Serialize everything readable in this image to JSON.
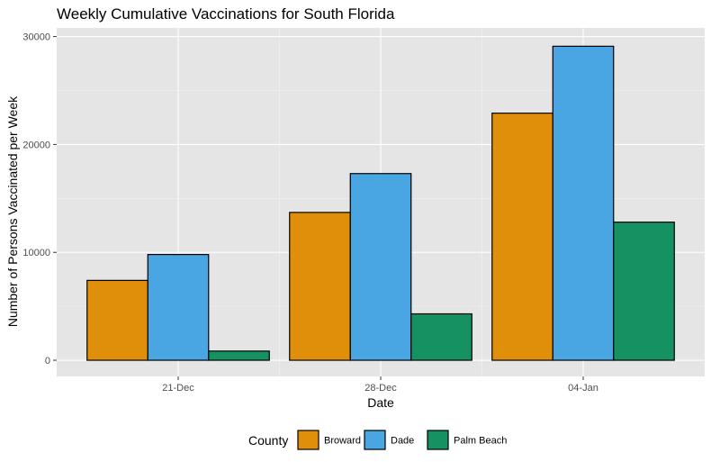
{
  "chart_data": {
    "type": "bar",
    "title": "Weekly Cumulative Vaccinations for South Florida",
    "xlabel": "Date",
    "ylabel": "Number of Persons Vaccinated per Week",
    "categories": [
      "21-Dec",
      "28-Dec",
      "04-Jan"
    ],
    "series": [
      {
        "name": "Broward",
        "color": "#E08F0B",
        "values": [
          7400,
          13700,
          22900
        ]
      },
      {
        "name": "Dade",
        "color": "#4AA6E3",
        "values": [
          9800,
          17300,
          29100
        ]
      },
      {
        "name": "Palm Beach",
        "color": "#169162",
        "values": [
          850,
          4300,
          12800
        ]
      }
    ],
    "ylim": [
      -1500,
      30800
    ],
    "yticks": [
      0,
      10000,
      20000,
      30000
    ],
    "ytick_labels": [
      "0",
      "10000",
      "20000",
      "30000"
    ],
    "legend": {
      "title": "County",
      "position": "bottom"
    },
    "grid": true
  }
}
